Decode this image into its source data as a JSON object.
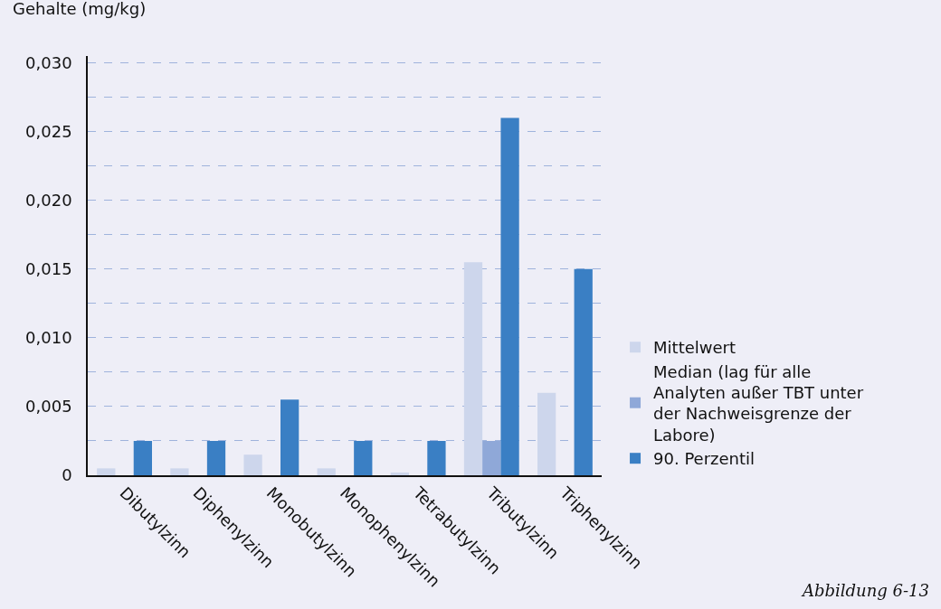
{
  "chart_data": {
    "type": "bar",
    "ylabel": "Gehalte (mg/kg)",
    "categories": [
      "Dibutylzinn",
      "Diphenylzinn",
      "Monobutylzinn",
      "Monophenylzinn",
      "Tetrabutylzinn",
      "Tributylzinn",
      "Triphenylzinn"
    ],
    "series": [
      {
        "name": "Mittelwert",
        "color": "#cdd6ec",
        "values": [
          0.0005,
          0.0005,
          0.0015,
          0.0005,
          0.0002,
          0.0155,
          0.006
        ]
      },
      {
        "name": "Median (lag für alle Analyten außer TBT unter der Nachweisgrenze der Labore)",
        "color": "#8fa8d8",
        "values": [
          null,
          null,
          null,
          null,
          null,
          0.0025,
          null
        ]
      },
      {
        "name": "90. Perzentil",
        "color": "#3a7fc4",
        "values": [
          0.0025,
          0.0025,
          0.0055,
          0.0025,
          0.0025,
          0.026,
          0.015
        ]
      }
    ],
    "ylim": [
      0,
      0.0305
    ],
    "yticks": [
      {
        "value": 0,
        "label": "0"
      },
      {
        "value": 0.0025,
        "label": null
      },
      {
        "value": 0.005,
        "label": "0,005"
      },
      {
        "value": 0.0075,
        "label": null
      },
      {
        "value": 0.01,
        "label": "0,010"
      },
      {
        "value": 0.0125,
        "label": null
      },
      {
        "value": 0.015,
        "label": "0,015"
      },
      {
        "value": 0.0175,
        "label": null
      },
      {
        "value": 0.02,
        "label": "0,020"
      },
      {
        "value": 0.0225,
        "label": null
      },
      {
        "value": 0.025,
        "label": "0,025"
      },
      {
        "value": 0.0275,
        "label": null
      },
      {
        "value": 0.03,
        "label": "0,030"
      }
    ],
    "grid": "y",
    "legend": "bottom right",
    "annotations": [
      "Abbildung 6-13"
    ]
  }
}
